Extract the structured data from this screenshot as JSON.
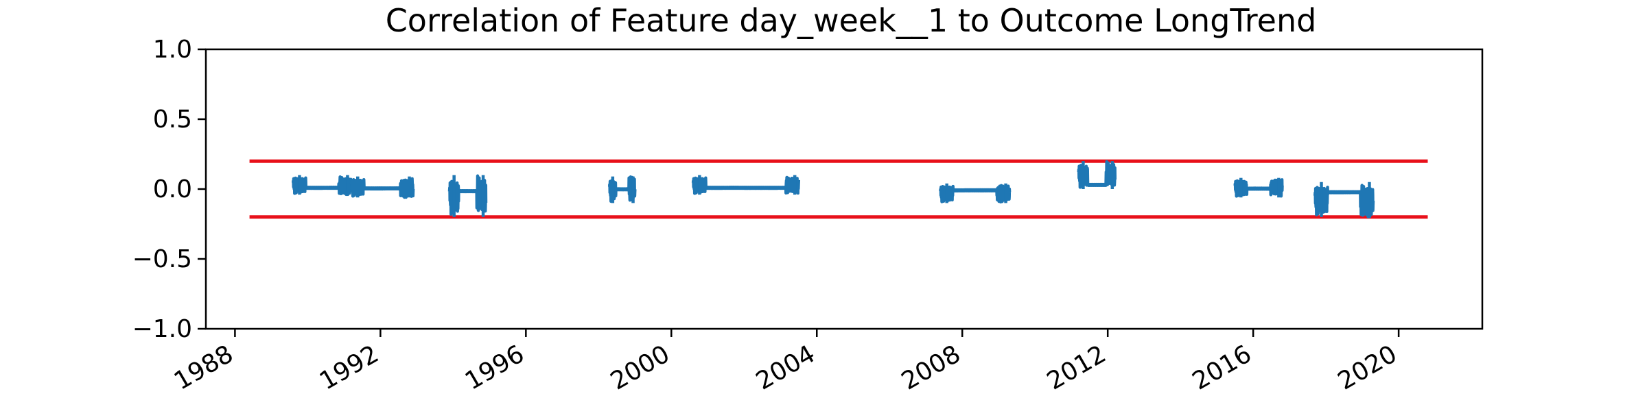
{
  "chart_data": {
    "type": "line",
    "title": "Correlation of Feature day_week__1 to Outcome LongTrend",
    "xlabel": "",
    "ylabel": "",
    "xlim": [
      1987.2,
      2022.3
    ],
    "ylim": [
      -1.0,
      1.0
    ],
    "x_ticks": [
      "1988",
      "1992",
      "1996",
      "2000",
      "2004",
      "2008",
      "2012",
      "2016",
      "2020"
    ],
    "y_ticks": [
      "−1.0",
      "−0.5",
      "0.0",
      "0.5",
      "1.0"
    ],
    "grid": false,
    "colors": {
      "series": "#1f77b4",
      "threshold": "#e8101a",
      "axes": "#000000"
    },
    "thresholds": [
      {
        "y": 0.2,
        "x_start": 1988.4,
        "x_end": 2020.8
      },
      {
        "y": -0.2,
        "x_start": 1988.4,
        "x_end": 2020.8
      }
    ],
    "series": [
      {
        "segments": [
          {
            "x_start": 1989.6,
            "x_end": 1991.2,
            "y_min": -0.04,
            "y_max": 0.1
          },
          {
            "x_start": 1991.2,
            "x_end": 1992.9,
            "y_min": -0.06,
            "y_max": 0.09
          },
          {
            "x_start": 1993.9,
            "x_end": 1994.9,
            "y_min": -0.2,
            "y_max": 0.1
          },
          {
            "x_start": 1998.3,
            "x_end": 1999.0,
            "y_min": -0.1,
            "y_max": 0.09
          },
          {
            "x_start": 2000.6,
            "x_end": 2003.5,
            "y_min": -0.04,
            "y_max": 0.1
          },
          {
            "x_start": 2007.4,
            "x_end": 2009.3,
            "y_min": -0.1,
            "y_max": 0.04
          },
          {
            "x_start": 2011.2,
            "x_end": 2012.2,
            "y_min": 0.0,
            "y_max": 0.2
          },
          {
            "x_start": 2015.5,
            "x_end": 2016.8,
            "y_min": -0.06,
            "y_max": 0.08
          },
          {
            "x_start": 2017.7,
            "x_end": 2019.3,
            "y_min": -0.2,
            "y_max": 0.05
          }
        ]
      }
    ]
  }
}
